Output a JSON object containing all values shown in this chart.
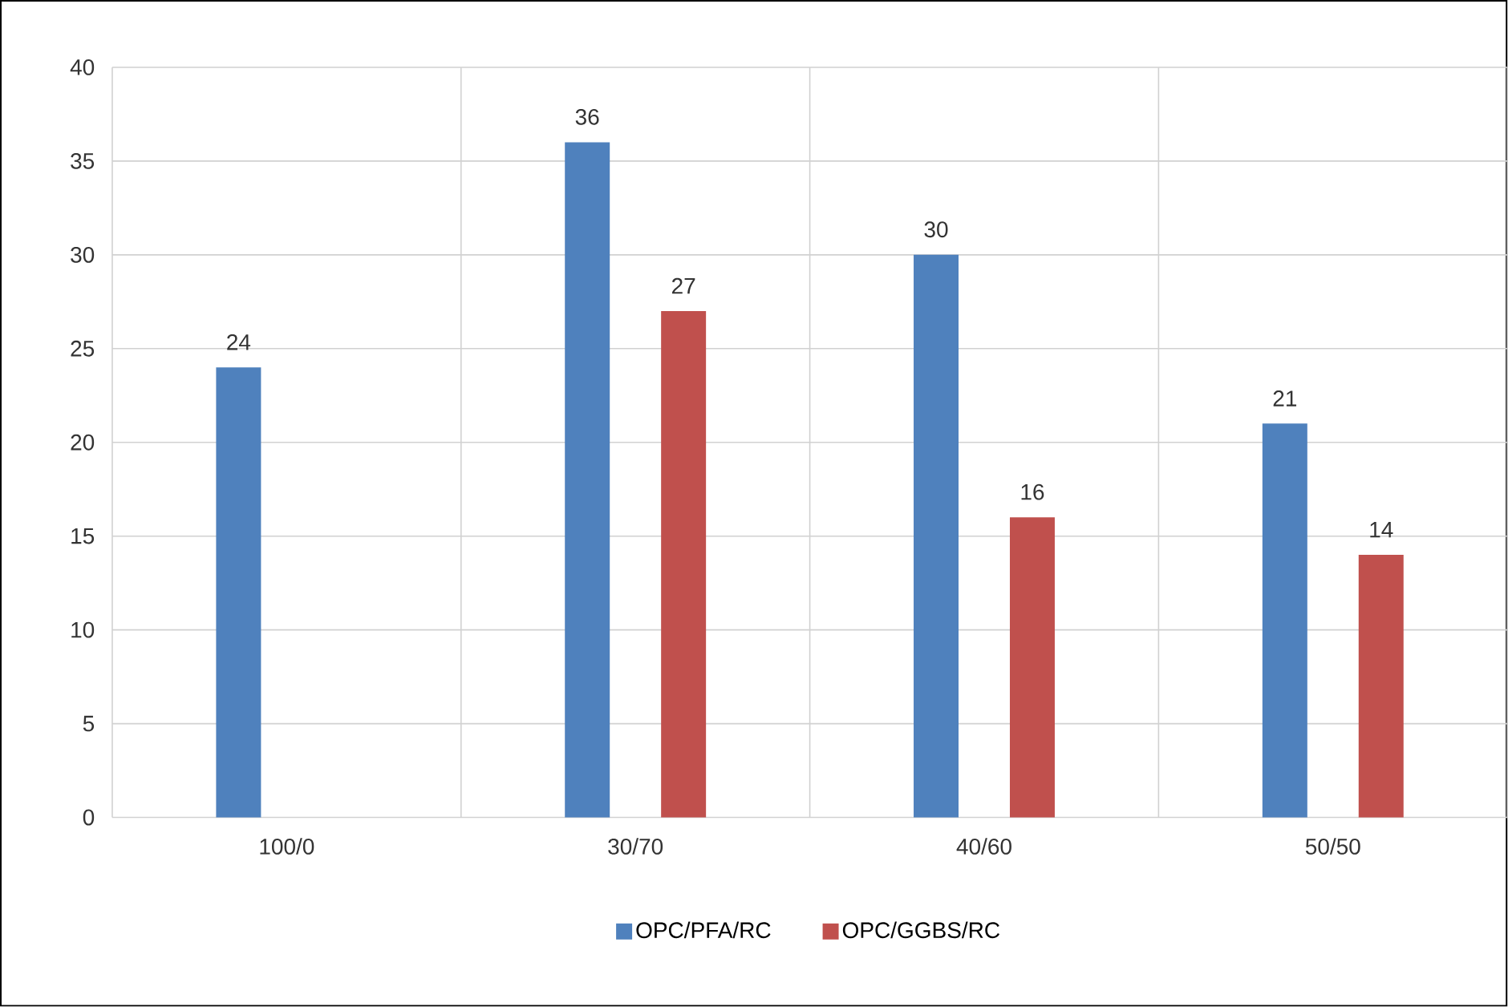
{
  "chart_data": {
    "type": "bar",
    "categories": [
      "100/0",
      "30/70",
      "40/60",
      "50/50"
    ],
    "series": [
      {
        "name": "OPC/PFA/RC",
        "color": "#4f81bd",
        "values": [
          24,
          36,
          30,
          21
        ]
      },
      {
        "name": "OPC/GGBS/RC",
        "color": "#c0504d",
        "values": [
          null,
          27,
          16,
          14
        ]
      }
    ],
    "ylim": [
      0,
      40
    ],
    "yticks": [
      0,
      5,
      10,
      15,
      20,
      25,
      30,
      35,
      40
    ],
    "grid": true,
    "legend": "bottom",
    "data_labels": true
  }
}
